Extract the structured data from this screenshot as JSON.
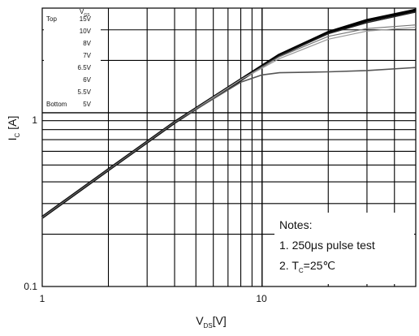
{
  "chart_data": {
    "type": "line",
    "x_scale": "log",
    "y_scale": "log",
    "xlim": [
      1,
      50
    ],
    "ylim": [
      0.1,
      4
    ],
    "grid": true,
    "x_ticks": [
      "1",
      "10"
    ],
    "y_ticks": [
      "0.1",
      "1"
    ],
    "xlabel": {
      "main": "V",
      "sub": "DS",
      "unit": "[V]"
    },
    "ylabel": {
      "main": "I",
      "sub": "C",
      "unit": " [A]"
    },
    "legend": {
      "position": "top-left",
      "header": {
        "main": "V",
        "sub": "GS"
      },
      "top_label": "Top",
      "bottom_label": "Bottom",
      "entries": [
        "15V",
        "10V",
        "8V",
        "7V",
        "6.5V",
        "6V",
        "5.5V",
        "5V"
      ]
    },
    "notes": {
      "title": "Notes:",
      "line1": "1. 250μs pulse test",
      "line2_prefix": "2. T",
      "line2_sub": "C",
      "line2_suffix": "=25℃"
    },
    "series": [
      {
        "label_ref": "15V",
        "points": [
          [
            1,
            0.25
          ],
          [
            2,
            0.47
          ],
          [
            4,
            0.88
          ],
          [
            8,
            1.55
          ],
          [
            12,
            2.15
          ],
          [
            20,
            2.9
          ],
          [
            30,
            3.4
          ],
          [
            50,
            3.9
          ]
        ]
      },
      {
        "label_ref": "10V",
        "points": [
          [
            1,
            0.25
          ],
          [
            2,
            0.47
          ],
          [
            4,
            0.88
          ],
          [
            8,
            1.55
          ],
          [
            12,
            2.13
          ],
          [
            20,
            2.85
          ],
          [
            30,
            3.3
          ],
          [
            50,
            3.8
          ]
        ]
      },
      {
        "label_ref": "8V",
        "points": [
          [
            1,
            0.25
          ],
          [
            2,
            0.47
          ],
          [
            4,
            0.88
          ],
          [
            8,
            1.55
          ],
          [
            12,
            2.1
          ],
          [
            20,
            2.75
          ],
          [
            30,
            3.05
          ],
          [
            50,
            3.2
          ]
        ]
      },
      {
        "label_ref": "7V",
        "points": [
          [
            1,
            0.25
          ],
          [
            2,
            0.47
          ],
          [
            4,
            0.88
          ],
          [
            8,
            1.55
          ],
          [
            12,
            2.05
          ],
          [
            20,
            2.65
          ],
          [
            30,
            2.95
          ],
          [
            50,
            3.1
          ]
        ]
      },
      {
        "label_ref": "5V",
        "points": [
          [
            1,
            0.25
          ],
          [
            2,
            0.47
          ],
          [
            4,
            0.88
          ],
          [
            8,
            1.5
          ],
          [
            10,
            1.65
          ],
          [
            12,
            1.7
          ],
          [
            20,
            1.72
          ],
          [
            30,
            1.75
          ],
          [
            50,
            1.82
          ]
        ]
      }
    ]
  }
}
